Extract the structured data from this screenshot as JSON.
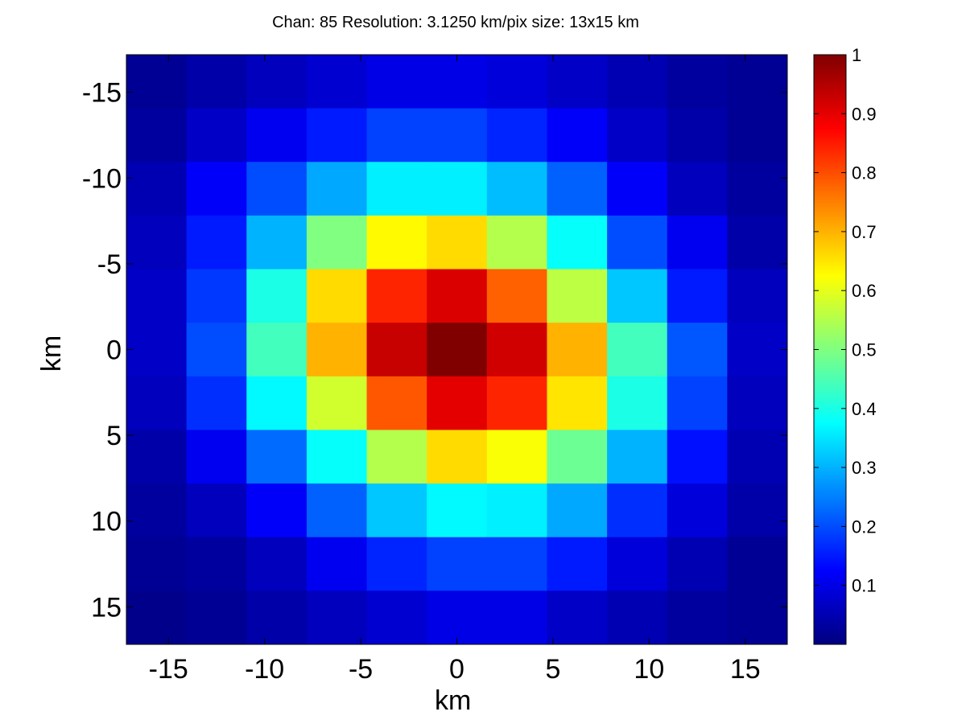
{
  "chart_data": {
    "type": "heatmap",
    "title": "Chan: 85  Resolution: 3.1250 km/pix  size: 13x15 km",
    "xlabel": "km",
    "ylabel": "km",
    "x_ticks": [
      "-15",
      "-10",
      "-5",
      "0",
      "5",
      "10",
      "15"
    ],
    "y_ticks": [
      "-15",
      "-10",
      "-5",
      "0",
      "5",
      "10",
      "15"
    ],
    "x_tick_values": [
      -15,
      -10,
      -5,
      0,
      5,
      10,
      15
    ],
    "y_tick_values": [
      -15,
      -10,
      -5,
      0,
      5,
      10,
      15
    ],
    "xlim": [
      -17.1875,
      17.1875
    ],
    "ylim": [
      -17.1875,
      17.1875
    ],
    "y_axis_reversed": true,
    "cell_size_km": 3.125,
    "colormap": "jet",
    "clim": [
      0,
      1
    ],
    "colorbar_ticks": [
      "0.1",
      "0.2",
      "0.3",
      "0.4",
      "0.5",
      "0.6",
      "0.7",
      "0.8",
      "0.9",
      "1"
    ],
    "colorbar_tick_values": [
      0.1,
      0.2,
      0.3,
      0.4,
      0.5,
      0.6,
      0.7,
      0.8,
      0.9,
      1.0
    ],
    "x_centers": [
      -15.625,
      -12.5,
      -9.375,
      -6.25,
      -3.125,
      0,
      3.125,
      6.25,
      9.375,
      12.5,
      15.625
    ],
    "y_centers": [
      -15.625,
      -12.5,
      -9.375,
      -6.25,
      -3.125,
      0,
      3.125,
      6.25,
      9.375,
      12.5,
      15.625
    ],
    "values": [
      [
        0.02,
        0.04,
        0.06,
        0.08,
        0.1,
        0.1,
        0.09,
        0.07,
        0.05,
        0.03,
        0.02
      ],
      [
        0.03,
        0.07,
        0.11,
        0.15,
        0.19,
        0.19,
        0.16,
        0.12,
        0.07,
        0.04,
        0.02
      ],
      [
        0.05,
        0.12,
        0.2,
        0.29,
        0.36,
        0.36,
        0.31,
        0.22,
        0.12,
        0.06,
        0.03
      ],
      [
        0.06,
        0.15,
        0.3,
        0.5,
        0.63,
        0.66,
        0.55,
        0.38,
        0.2,
        0.11,
        0.04
      ],
      [
        0.07,
        0.18,
        0.4,
        0.66,
        0.84,
        0.91,
        0.78,
        0.56,
        0.32,
        0.15,
        0.06
      ],
      [
        0.07,
        0.2,
        0.44,
        0.7,
        0.93,
        1.0,
        0.92,
        0.7,
        0.44,
        0.21,
        0.07
      ],
      [
        0.06,
        0.17,
        0.37,
        0.58,
        0.79,
        0.9,
        0.84,
        0.65,
        0.4,
        0.19,
        0.06
      ],
      [
        0.04,
        0.11,
        0.23,
        0.38,
        0.55,
        0.66,
        0.62,
        0.48,
        0.3,
        0.14,
        0.05
      ],
      [
        0.03,
        0.06,
        0.12,
        0.22,
        0.32,
        0.37,
        0.36,
        0.29,
        0.17,
        0.09,
        0.04
      ],
      [
        0.02,
        0.03,
        0.06,
        0.11,
        0.16,
        0.19,
        0.19,
        0.15,
        0.09,
        0.05,
        0.02
      ],
      [
        0.01,
        0.02,
        0.04,
        0.06,
        0.08,
        0.1,
        0.1,
        0.07,
        0.05,
        0.03,
        0.02
      ]
    ]
  }
}
